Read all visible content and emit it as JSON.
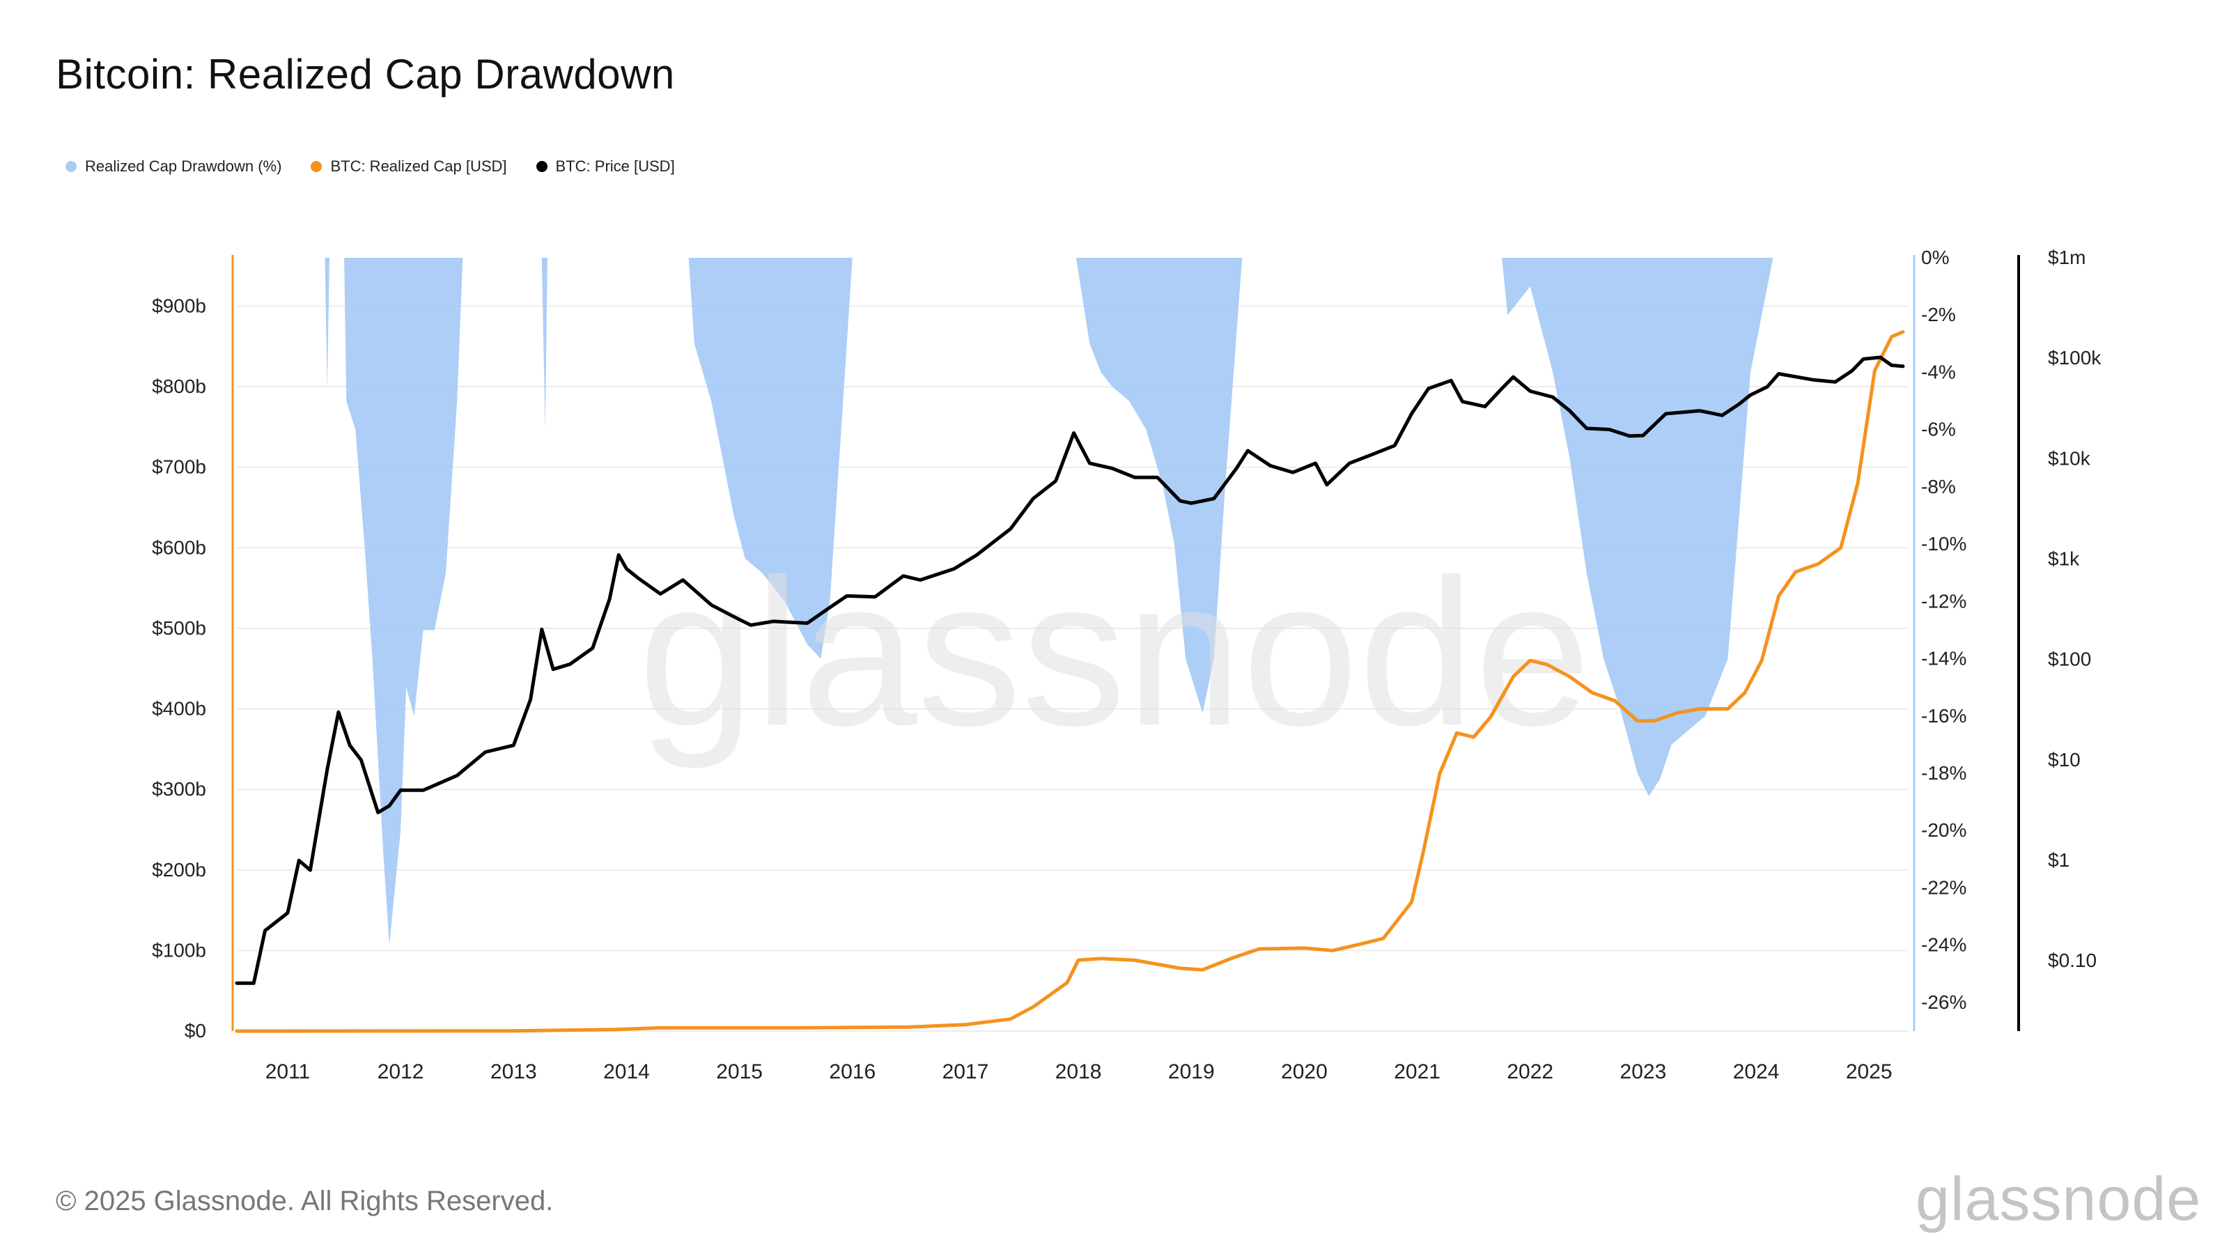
{
  "title": "Bitcoin: Realized Cap Drawdown",
  "footer": "© 2025 Glassnode. All Rights Reserved.",
  "brand": "glassnode",
  "watermark": "glassnode",
  "legend": [
    {
      "label": "Realized Cap Drawdown (%)",
      "color": "#a8cbf7"
    },
    {
      "label": "BTC: Realized Cap [USD]",
      "color": "#f5921e"
    },
    {
      "label": "BTC: Price [USD]",
      "color": "#000000"
    }
  ],
  "chart_data": {
    "type": "line",
    "title": "Bitcoin: Realized Cap Drawdown",
    "xlim": [
      2010.55,
      2025.35
    ],
    "x_ticks": [
      2011,
      2012,
      2013,
      2014,
      2015,
      2016,
      2017,
      2018,
      2019,
      2020,
      2021,
      2022,
      2023,
      2024,
      2025
    ],
    "axes": {
      "left": {
        "unit": "USD",
        "ylim": [
          0,
          960000000000.0
        ],
        "ticks": [
          0,
          100000000000.0,
          200000000000.0,
          300000000000.0,
          400000000000.0,
          500000000000.0,
          600000000000.0,
          700000000000.0,
          800000000000.0,
          900000000000.0
        ],
        "tick_labels": [
          "$0",
          "$100b",
          "$200b",
          "$300b",
          "$400b",
          "$500b",
          "$600b",
          "$700b",
          "$800b",
          "$900b"
        ]
      },
      "drawdown": {
        "unit": "%",
        "ylim": [
          -27,
          0
        ],
        "ticks": [
          0,
          -2,
          -4,
          -6,
          -8,
          -10,
          -12,
          -14,
          -16,
          -18,
          -20,
          -22,
          -24,
          -26
        ],
        "tick_labels": [
          "0%",
          "-2%",
          "-4%",
          "-6%",
          "-8%",
          "-10%",
          "-12%",
          "-14%",
          "-16%",
          "-18%",
          "-20%",
          "-22%",
          "-24%",
          "-26%"
        ]
      },
      "price": {
        "unit": "USD",
        "scale": "log",
        "ylim": [
          0.02,
          1000000
        ],
        "ticks": [
          0.1,
          1,
          10,
          100,
          1000,
          10000,
          100000,
          1000000
        ],
        "tick_labels": [
          "$0.10",
          "$1",
          "$10",
          "$100",
          "$1k",
          "$10k",
          "$100k",
          "$1m"
        ]
      }
    },
    "grid": true,
    "legend_position": "top-left",
    "series": [
      {
        "name": "Realized Cap Drawdown (%)",
        "axis": "drawdown",
        "style": "area",
        "color": "#a8cbf7",
        "points": [
          [
            2010.55,
            0
          ],
          [
            2011.33,
            0
          ],
          [
            2011.35,
            -4.6
          ],
          [
            2011.37,
            0
          ],
          [
            2011.5,
            0
          ],
          [
            2011.52,
            -5
          ],
          [
            2011.6,
            -6
          ],
          [
            2011.68,
            -10
          ],
          [
            2011.75,
            -14
          ],
          [
            2011.85,
            -21
          ],
          [
            2011.9,
            -24
          ],
          [
            2012.0,
            -20
          ],
          [
            2012.05,
            -15
          ],
          [
            2012.12,
            -16
          ],
          [
            2012.2,
            -13
          ],
          [
            2012.3,
            -13
          ],
          [
            2012.4,
            -11
          ],
          [
            2012.5,
            -5
          ],
          [
            2012.55,
            0
          ],
          [
            2013.25,
            0
          ],
          [
            2013.28,
            -6
          ],
          [
            2013.3,
            0
          ],
          [
            2014.55,
            0
          ],
          [
            2014.6,
            -3
          ],
          [
            2014.75,
            -5
          ],
          [
            2014.95,
            -9
          ],
          [
            2015.05,
            -10.5
          ],
          [
            2015.2,
            -11
          ],
          [
            2015.4,
            -12
          ],
          [
            2015.6,
            -13.5
          ],
          [
            2015.72,
            -14
          ],
          [
            2015.8,
            -12
          ],
          [
            2015.9,
            -6
          ],
          [
            2016.0,
            0
          ],
          [
            2017.98,
            0
          ],
          [
            2018.1,
            -3
          ],
          [
            2018.2,
            -4
          ],
          [
            2018.3,
            -4.5
          ],
          [
            2018.45,
            -5
          ],
          [
            2018.6,
            -6
          ],
          [
            2018.75,
            -8
          ],
          [
            2018.85,
            -10
          ],
          [
            2018.95,
            -14
          ],
          [
            2019.1,
            -15.9
          ],
          [
            2019.2,
            -14
          ],
          [
            2019.3,
            -8
          ],
          [
            2019.45,
            0
          ],
          [
            2021.75,
            0
          ],
          [
            2021.8,
            -2
          ],
          [
            2022.0,
            -1
          ],
          [
            2022.2,
            -4
          ],
          [
            2022.35,
            -7
          ],
          [
            2022.5,
            -11
          ],
          [
            2022.65,
            -14
          ],
          [
            2022.8,
            -15.8
          ],
          [
            2022.95,
            -18
          ],
          [
            2023.05,
            -18.8
          ],
          [
            2023.15,
            -18.2
          ],
          [
            2023.25,
            -17
          ],
          [
            2023.4,
            -16.5
          ],
          [
            2023.55,
            -16
          ],
          [
            2023.75,
            -14
          ],
          [
            2023.85,
            -9
          ],
          [
            2023.95,
            -4
          ],
          [
            2024.15,
            0
          ],
          [
            2025.35,
            0
          ]
        ]
      },
      {
        "name": "BTC: Realized Cap [USD]",
        "axis": "left",
        "style": "line",
        "color": "#f5921e",
        "points": [
          [
            2010.55,
            0
          ],
          [
            2013.0,
            300000000.0
          ],
          [
            2013.9,
            2000000000.0
          ],
          [
            2014.3,
            4000000000.0
          ],
          [
            2015.5,
            4000000000.0
          ],
          [
            2016.5,
            5000000000.0
          ],
          [
            2017.0,
            8000000000.0
          ],
          [
            2017.4,
            15000000000.0
          ],
          [
            2017.6,
            30000000000.0
          ],
          [
            2017.9,
            60000000000.0
          ],
          [
            2018.0,
            88000000000.0
          ],
          [
            2018.2,
            90000000000.0
          ],
          [
            2018.5,
            88000000000.0
          ],
          [
            2018.9,
            78000000000.0
          ],
          [
            2019.1,
            76000000000.0
          ],
          [
            2019.35,
            90000000000.0
          ],
          [
            2019.6,
            102000000000.0
          ],
          [
            2020.0,
            103000000000.0
          ],
          [
            2020.25,
            100000000000.0
          ],
          [
            2020.5,
            108000000000.0
          ],
          [
            2020.7,
            115000000000.0
          ],
          [
            2020.95,
            160000000000.0
          ],
          [
            2021.05,
            220000000000.0
          ],
          [
            2021.2,
            320000000000.0
          ],
          [
            2021.35,
            370000000000.0
          ],
          [
            2021.5,
            365000000000.0
          ],
          [
            2021.65,
            390000000000.0
          ],
          [
            2021.85,
            440000000000.0
          ],
          [
            2022.0,
            460000000000.0
          ],
          [
            2022.15,
            455000000000.0
          ],
          [
            2022.35,
            440000000000.0
          ],
          [
            2022.55,
            420000000000.0
          ],
          [
            2022.75,
            410000000000.0
          ],
          [
            2022.95,
            385000000000.0
          ],
          [
            2023.1,
            385000000000.0
          ],
          [
            2023.3,
            395000000000.0
          ],
          [
            2023.5,
            400000000000.0
          ],
          [
            2023.75,
            400000000000.0
          ],
          [
            2023.9,
            420000000000.0
          ],
          [
            2024.05,
            460000000000.0
          ],
          [
            2024.2,
            540000000000.0
          ],
          [
            2024.35,
            570000000000.0
          ],
          [
            2024.55,
            580000000000.0
          ],
          [
            2024.75,
            600000000000.0
          ],
          [
            2024.9,
            680000000000.0
          ],
          [
            2025.05,
            820000000000.0
          ],
          [
            2025.2,
            862000000000.0
          ],
          [
            2025.3,
            868000000000.0
          ]
        ]
      },
      {
        "name": "BTC: Price [USD]",
        "axis": "price",
        "style": "line",
        "color": "#000000",
        "points": [
          [
            2010.55,
            0.06
          ],
          [
            2010.7,
            0.06
          ],
          [
            2010.8,
            0.2
          ],
          [
            2011.0,
            0.3
          ],
          [
            2011.1,
            1
          ],
          [
            2011.2,
            0.8
          ],
          [
            2011.35,
            8
          ],
          [
            2011.45,
            30
          ],
          [
            2011.55,
            14
          ],
          [
            2011.65,
            10
          ],
          [
            2011.8,
            3
          ],
          [
            2011.9,
            3.5
          ],
          [
            2012.0,
            5
          ],
          [
            2012.2,
            5
          ],
          [
            2012.5,
            7
          ],
          [
            2012.75,
            12
          ],
          [
            2013.0,
            14
          ],
          [
            2013.15,
            40
          ],
          [
            2013.25,
            200
          ],
          [
            2013.35,
            80
          ],
          [
            2013.5,
            90
          ],
          [
            2013.7,
            130
          ],
          [
            2013.85,
            400
          ],
          [
            2013.93,
            1100
          ],
          [
            2014.0,
            800
          ],
          [
            2014.1,
            650
          ],
          [
            2014.3,
            450
          ],
          [
            2014.5,
            620
          ],
          [
            2014.75,
            350
          ],
          [
            2015.0,
            250
          ],
          [
            2015.1,
            220
          ],
          [
            2015.3,
            240
          ],
          [
            2015.6,
            230
          ],
          [
            2015.8,
            330
          ],
          [
            2015.95,
            430
          ],
          [
            2016.2,
            420
          ],
          [
            2016.45,
            680
          ],
          [
            2016.6,
            620
          ],
          [
            2016.9,
            800
          ],
          [
            2017.1,
            1100
          ],
          [
            2017.4,
            2000
          ],
          [
            2017.6,
            4000
          ],
          [
            2017.8,
            6000
          ],
          [
            2017.96,
            18000
          ],
          [
            2018.1,
            9000
          ],
          [
            2018.3,
            8000
          ],
          [
            2018.5,
            6500
          ],
          [
            2018.7,
            6500
          ],
          [
            2018.9,
            3800
          ],
          [
            2019.0,
            3600
          ],
          [
            2019.2,
            4000
          ],
          [
            2019.4,
            8000
          ],
          [
            2019.5,
            12000
          ],
          [
            2019.7,
            8500
          ],
          [
            2019.9,
            7300
          ],
          [
            2020.1,
            9000
          ],
          [
            2020.2,
            5500
          ],
          [
            2020.4,
            9000
          ],
          [
            2020.6,
            11000
          ],
          [
            2020.8,
            13500
          ],
          [
            2020.95,
            28000
          ],
          [
            2021.1,
            50000
          ],
          [
            2021.3,
            60000
          ],
          [
            2021.4,
            37000
          ],
          [
            2021.6,
            33000
          ],
          [
            2021.75,
            50000
          ],
          [
            2021.85,
            65000
          ],
          [
            2022.0,
            47000
          ],
          [
            2022.2,
            41000
          ],
          [
            2022.35,
            30000
          ],
          [
            2022.5,
            20000
          ],
          [
            2022.7,
            19500
          ],
          [
            2022.88,
            16800
          ],
          [
            2023.0,
            17000
          ],
          [
            2023.2,
            28000
          ],
          [
            2023.5,
            30000
          ],
          [
            2023.7,
            27000
          ],
          [
            2023.85,
            35000
          ],
          [
            2023.95,
            43000
          ],
          [
            2024.1,
            52000
          ],
          [
            2024.2,
            70000
          ],
          [
            2024.5,
            61000
          ],
          [
            2024.7,
            58000
          ],
          [
            2024.85,
            75000
          ],
          [
            2024.95,
            98000
          ],
          [
            2025.1,
            102000
          ],
          [
            2025.2,
            85000
          ],
          [
            2025.3,
            83000
          ]
        ]
      }
    ]
  }
}
